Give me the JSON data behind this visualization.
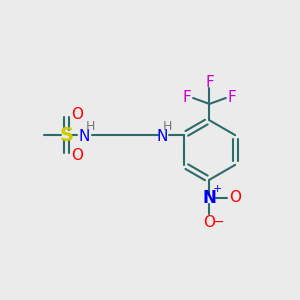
{
  "bg_color": "#ebebeb",
  "bond_color": "#2d6b6b",
  "bond_width": 1.5,
  "atom_colors": {
    "N": "#0000ee",
    "S": "#cccc00",
    "O": "#ff0000",
    "F": "#cc00cc",
    "H": "#777777",
    "C": "#2d6b6b"
  },
  "font_size_atoms": 11,
  "font_size_small": 8,
  "figsize": [
    3.0,
    3.0
  ],
  "dpi": 100
}
